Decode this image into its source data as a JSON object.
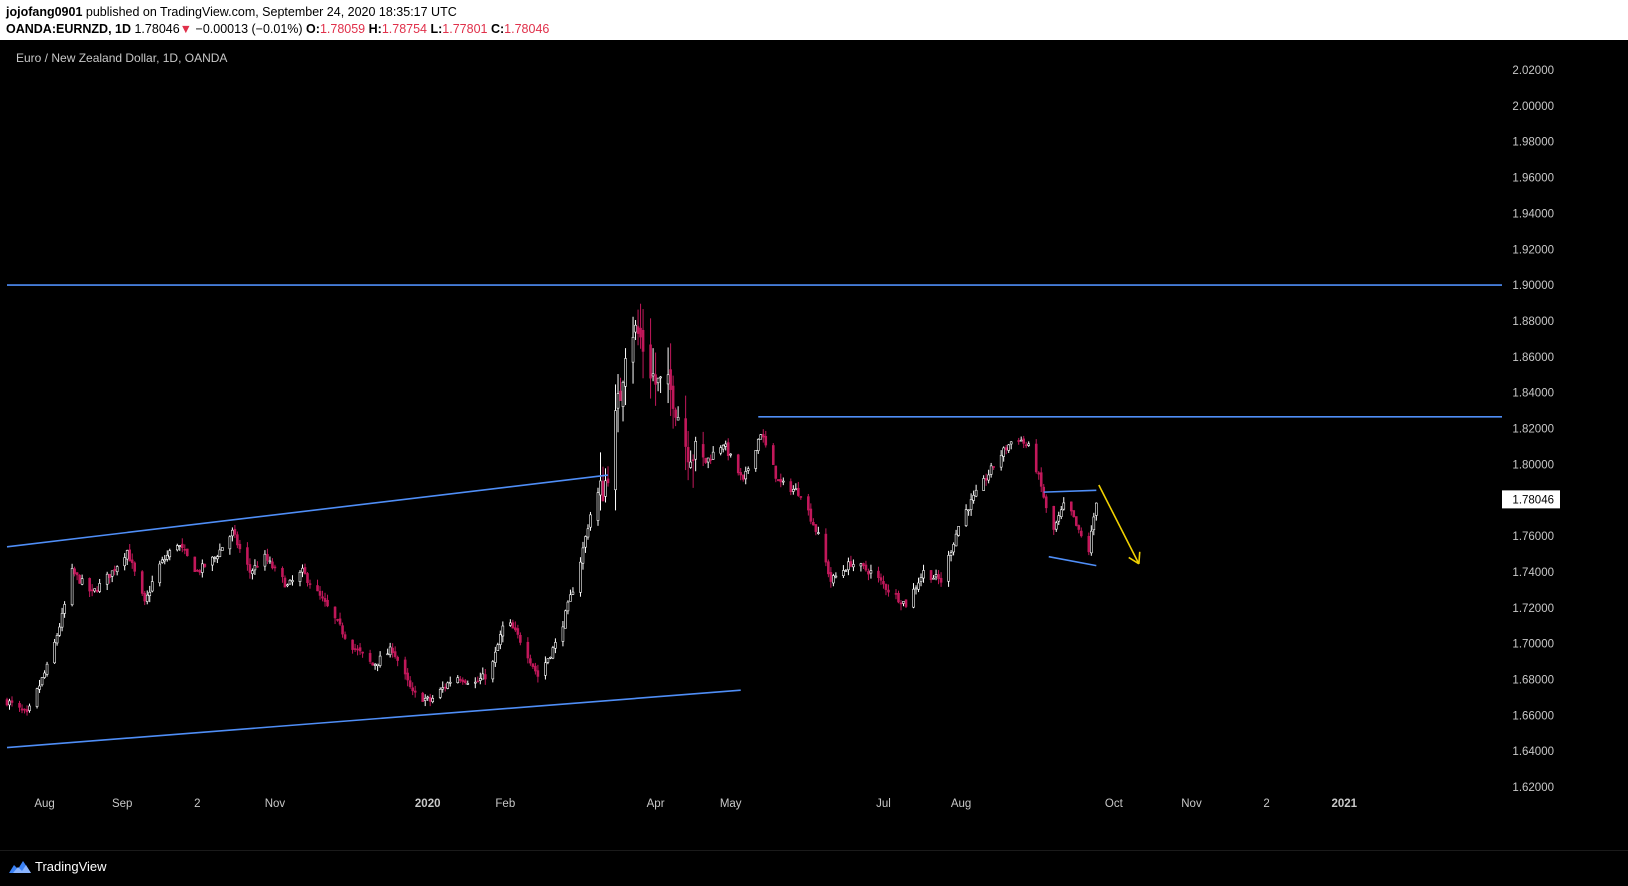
{
  "header": {
    "user": "jojofang0901",
    "published": "published on TradingView.com, September 24, 2020 18:35:17 UTC",
    "symbol": "OANDA:EURNZD, 1D",
    "last": "1.78046",
    "arrow": "▼",
    "change": "−0.00013 (−0.01%)",
    "o_label": "O:",
    "o_value": "1.78059",
    "h_label": "H:",
    "h_value": "1.78754",
    "l_label": "L:",
    "l_value": "1.77801",
    "c_label": "C:",
    "c_value": "1.78046"
  },
  "footer": {
    "brand": "TradingView",
    "logo_icon": "tradingview-logo-icon"
  },
  "colors": {
    "up": "#ffffff",
    "down": "#c2185b",
    "trendline": "#4f8ef7",
    "arrow": "#f0d000",
    "axis_text": "#c8c8c8",
    "price_label_bg": "#ffffff"
  },
  "chart_data": {
    "type": "candlestick",
    "title": "Euro / New Zealand Dollar, 1D, OANDA",
    "y_ticks": [
      "2.02000",
      "2.00000",
      "1.98000",
      "1.96000",
      "1.94000",
      "1.92000",
      "1.90000",
      "1.88000",
      "1.86000",
      "1.84000",
      "1.82000",
      "1.80000",
      "1.78000",
      "1.76000",
      "1.74000",
      "1.72000",
      "1.70000",
      "1.68000",
      "1.66000",
      "1.64000",
      "1.62000"
    ],
    "ylim": [
      1.62,
      2.02
    ],
    "x_ticks": [
      {
        "label": "Aug",
        "date": "2019-08-01"
      },
      {
        "label": "Sep",
        "date": "2019-09-01"
      },
      {
        "label": "2",
        "date": "2019-10-01"
      },
      {
        "label": "Nov",
        "date": "2019-11-01"
      },
      {
        "label": "2020",
        "date": "2020-01-01",
        "bold": true
      },
      {
        "label": "Feb",
        "date": "2020-02-01"
      },
      {
        "label": "Apr",
        "date": "2020-04-01"
      },
      {
        "label": "May",
        "date": "2020-05-01"
      },
      {
        "label": "Jul",
        "date": "2020-07-01"
      },
      {
        "label": "Aug",
        "date": "2020-08-01"
      },
      {
        "label": "Oct",
        "date": "2020-10-01"
      },
      {
        "label": "Nov",
        "date": "2020-11-01"
      },
      {
        "label": "2",
        "date": "2020-12-01"
      },
      {
        "label": "2021",
        "date": "2021-01-01",
        "bold": true
      }
    ],
    "x_range": [
      "2019-07-17",
      "2021-03-05"
    ],
    "last_price": 1.78046,
    "last_price_label": "1.78046",
    "price_path": [
      [
        "2019-07-17",
        1.668
      ],
      [
        "2019-07-25",
        1.66
      ],
      [
        "2019-08-03",
        1.69
      ],
      [
        "2019-08-08",
        1.715
      ],
      [
        "2019-08-12",
        1.74
      ],
      [
        "2019-08-20",
        1.728
      ],
      [
        "2019-08-28",
        1.74
      ],
      [
        "2019-09-03",
        1.752
      ],
      [
        "2019-09-10",
        1.722
      ],
      [
        "2019-09-15",
        1.742
      ],
      [
        "2019-09-23",
        1.756
      ],
      [
        "2019-10-01",
        1.74
      ],
      [
        "2019-10-08",
        1.748
      ],
      [
        "2019-10-15",
        1.762
      ],
      [
        "2019-10-22",
        1.74
      ],
      [
        "2019-10-28",
        1.748
      ],
      [
        "2019-11-06",
        1.732
      ],
      [
        "2019-11-12",
        1.74
      ],
      [
        "2019-11-22",
        1.72
      ],
      [
        "2019-12-01",
        1.7
      ],
      [
        "2019-12-10",
        1.688
      ],
      [
        "2019-12-18",
        1.697
      ],
      [
        "2019-12-26",
        1.672
      ],
      [
        "2020-01-02",
        1.668
      ],
      [
        "2020-01-12",
        1.682
      ],
      [
        "2020-01-20",
        1.678
      ],
      [
        "2020-01-26",
        1.684
      ],
      [
        "2020-02-01",
        1.714
      ],
      [
        "2020-02-08",
        1.7
      ],
      [
        "2020-02-14",
        1.682
      ],
      [
        "2020-02-22",
        1.702
      ],
      [
        "2020-03-01",
        1.74
      ],
      [
        "2020-03-06",
        1.772
      ],
      [
        "2020-03-12",
        1.79
      ],
      [
        "2020-03-18",
        1.84
      ],
      [
        "2020-03-21",
        1.88
      ],
      [
        "2020-03-26",
        1.87
      ],
      [
        "2020-04-01",
        1.845
      ],
      [
        "2020-04-08",
        1.84
      ],
      [
        "2020-04-13",
        1.812
      ],
      [
        "2020-04-20",
        1.8
      ],
      [
        "2020-04-28",
        1.812
      ],
      [
        "2020-05-06",
        1.79
      ],
      [
        "2020-05-13",
        1.818
      ],
      [
        "2020-05-20",
        1.79
      ],
      [
        "2020-05-29",
        1.784
      ],
      [
        "2020-06-05",
        1.76
      ],
      [
        "2020-06-10",
        1.735
      ],
      [
        "2020-06-18",
        1.745
      ],
      [
        "2020-06-26",
        1.74
      ],
      [
        "2020-07-03",
        1.73
      ],
      [
        "2020-07-10",
        1.722
      ],
      [
        "2020-07-17",
        1.74
      ],
      [
        "2020-07-24",
        1.735
      ],
      [
        "2020-08-01",
        1.77
      ],
      [
        "2020-08-10",
        1.79
      ],
      [
        "2020-08-16",
        1.804
      ],
      [
        "2020-08-23",
        1.816
      ],
      [
        "2020-08-29",
        1.808
      ],
      [
        "2020-09-03",
        1.782
      ],
      [
        "2020-09-06",
        1.76
      ],
      [
        "2020-09-12",
        1.78
      ],
      [
        "2020-09-17",
        1.762
      ],
      [
        "2020-09-21",
        1.752
      ],
      [
        "2020-09-24",
        1.78
      ]
    ],
    "annotations": [
      {
        "kind": "hline",
        "price": 1.9,
        "from": "2019-07-17",
        "to": "2021-03-05"
      },
      {
        "kind": "hline",
        "price": 1.8265,
        "from": "2020-05-12",
        "to": "2021-03-05"
      },
      {
        "kind": "trend",
        "from": [
          "2019-07-17",
          1.754
        ],
        "to": [
          "2020-03-13",
          1.794
        ]
      },
      {
        "kind": "trend",
        "from": [
          "2019-07-17",
          1.642
        ],
        "to": [
          "2020-05-05",
          1.674
        ]
      },
      {
        "kind": "trend",
        "from": [
          "2020-09-03",
          1.7845
        ],
        "to": [
          "2020-09-24",
          1.7855
        ]
      },
      {
        "kind": "trend",
        "from": [
          "2020-09-05",
          1.7485
        ],
        "to": [
          "2020-09-24",
          1.7435
        ]
      },
      {
        "kind": "arrow",
        "from": [
          "2020-09-25",
          1.7885
        ],
        "to": [
          "2020-10-11",
          1.7445
        ]
      }
    ]
  }
}
